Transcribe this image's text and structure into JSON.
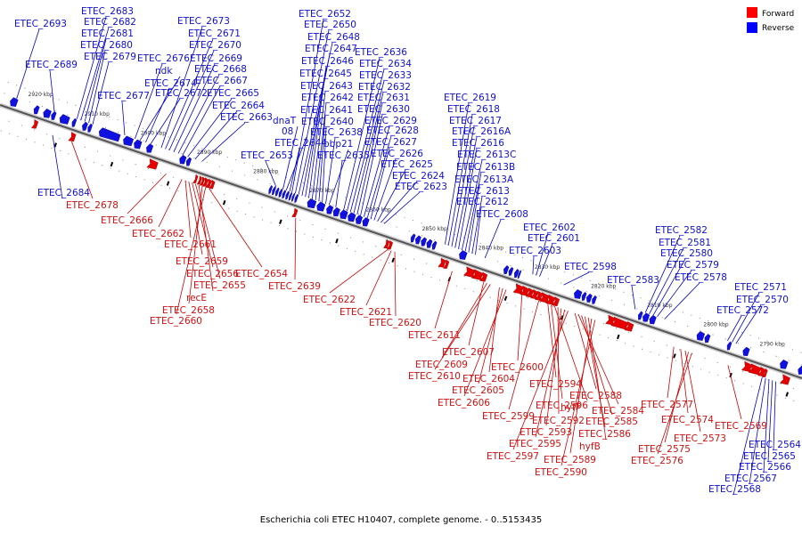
{
  "caption": "Escherichia coli ETEC H10407, complete genome. - 0..5153435",
  "legend": [
    {
      "label": "Forward",
      "color": "#ff0000"
    },
    {
      "label": "Reverse",
      "color": "#0000ff"
    }
  ],
  "colors": {
    "forward": "#e80000",
    "reverse": "#1010e0",
    "axis": "#555555",
    "leader_f": "#cc0000",
    "leader_r": "#0000cc"
  },
  "ticks": [
    "2920 kbp",
    "2910 kbp",
    "2900 kbp",
    "2890 kbp",
    "2880 kbp",
    "2870 kbp",
    "2860 kbp",
    "2850 kbp",
    "2840 kbp",
    "2830 kbp",
    "2820 kbp",
    "2810 kbp",
    "2800 kbp",
    "2790 kbp"
  ],
  "reverse_labels": [
    {
      "text": "ETEC_2693",
      "kbp": 2923.7
    },
    {
      "text": "ETEC_2683",
      "kbp": 2913.0
    },
    {
      "text": "ETEC_2682",
      "kbp": 2912.3
    },
    {
      "text": "ETEC_2681",
      "kbp": 2911.6
    },
    {
      "text": "ETEC_2680",
      "kbp": 2910.9
    },
    {
      "text": "ETEC_2679",
      "kbp": 2910.2
    },
    {
      "text": "ETEC_2689",
      "kbp": 2917.0
    },
    {
      "text": "ETEC_2677",
      "kbp": 2904.5
    },
    {
      "text": "ETEC_2676",
      "kbp": 2902.7
    },
    {
      "text": "ndk",
      "kbp": 2901.8
    },
    {
      "text": "ETEC_2674",
      "kbp": 2900.8
    },
    {
      "text": "ETEC_2672",
      "kbp": 2899.9
    },
    {
      "text": "ETEC_2673",
      "kbp": 2898.0
    },
    {
      "text": "ETEC_2671",
      "kbp": 2897.3
    },
    {
      "text": "ETEC_2670",
      "kbp": 2896.6
    },
    {
      "text": "ETEC_2669",
      "kbp": 2895.8
    },
    {
      "text": "ETEC_2668",
      "kbp": 2895.0
    },
    {
      "text": "ETEC_2667",
      "kbp": 2894.2
    },
    {
      "text": "ETEC_2665",
      "kbp": 2893.3
    },
    {
      "text": "ETEC_2664",
      "kbp": 2892.0
    },
    {
      "text": "ETEC_2663",
      "kbp": 2890.8
    },
    {
      "text": "ETEC_2653",
      "kbp": 2877.6
    },
    {
      "text": "dnaT",
      "kbp": 2876.4
    },
    {
      "text": "08",
      "kbp": 2875.8
    },
    {
      "text": "ETEC_2644",
      "kbp": 2875.2
    },
    {
      "text": "ETEC_2652",
      "kbp": 2874.8
    },
    {
      "text": "ETEC_2650",
      "kbp": 2874.2
    },
    {
      "text": "ETEC_2648",
      "kbp": 2873.6
    },
    {
      "text": "ETEC_2647",
      "kbp": 2873.0
    },
    {
      "text": "ETEC_2646",
      "kbp": 2872.4
    },
    {
      "text": "ETEC_2645",
      "kbp": 2871.8
    },
    {
      "text": "ETEC_2643",
      "kbp": 2871.2
    },
    {
      "text": "ETEC_2642",
      "kbp": 2870.6
    },
    {
      "text": "ETEC_2641",
      "kbp": 2870.0
    },
    {
      "text": "ETEC_2640",
      "kbp": 2869.4
    },
    {
      "text": "ETEC_2638",
      "kbp": 2868.8
    },
    {
      "text": "bbp21",
      "kbp": 2868.2
    },
    {
      "text": "ETEC_2635",
      "kbp": 2867.0
    },
    {
      "text": "ETEC_2636",
      "kbp": 2865.6
    },
    {
      "text": "ETEC_2634",
      "kbp": 2865.0
    },
    {
      "text": "ETEC_2633",
      "kbp": 2864.4
    },
    {
      "text": "ETEC_2632",
      "kbp": 2863.8
    },
    {
      "text": "ETEC_2631",
      "kbp": 2863.2
    },
    {
      "text": "ETEC_2630",
      "kbp": 2862.6
    },
    {
      "text": "ETEC_2629",
      "kbp": 2862.0
    },
    {
      "text": "ETEC_2628",
      "kbp": 2861.4
    },
    {
      "text": "ETEC_2627",
      "kbp": 2860.8
    },
    {
      "text": "ETEC_2626",
      "kbp": 2860.2
    },
    {
      "text": "ETEC_2625",
      "kbp": 2859.6
    },
    {
      "text": "ETEC_2624",
      "kbp": 2859.0
    },
    {
      "text": "ETEC_2623",
      "kbp": 2858.4
    },
    {
      "text": "ETEC_2619",
      "kbp": 2847.6
    },
    {
      "text": "ETEC_2618",
      "kbp": 2847.0
    },
    {
      "text": "ETEC_2617",
      "kbp": 2846.4
    },
    {
      "text": "ETEC_2616A",
      "kbp": 2845.8
    },
    {
      "text": "ETEC_2616",
      "kbp": 2845.2
    },
    {
      "text": "ETEC_2613C",
      "kbp": 2844.6
    },
    {
      "text": "ETEC_2613B",
      "kbp": 2844.0
    },
    {
      "text": "ETEC_2613A",
      "kbp": 2843.4
    },
    {
      "text": "ETEC_2613",
      "kbp": 2842.8
    },
    {
      "text": "ETEC_2612",
      "kbp": 2842.2
    },
    {
      "text": "ETEC_2608",
      "kbp": 2840.5
    },
    {
      "text": "ETEC_2602",
      "kbp": 2831.4
    },
    {
      "text": "ETEC_2601",
      "kbp": 2830.8
    },
    {
      "text": "ETEC_2603",
      "kbp": 2832.0
    },
    {
      "text": "ETEC_2598",
      "kbp": 2826.5
    },
    {
      "text": "ETEC_2583",
      "kbp": 2813.8
    },
    {
      "text": "ETEC_2582",
      "kbp": 2812.0
    },
    {
      "text": "ETEC_2581",
      "kbp": 2811.3
    },
    {
      "text": "ETEC_2580",
      "kbp": 2810.6
    },
    {
      "text": "ETEC_2579",
      "kbp": 2809.9
    },
    {
      "text": "ETEC_2578",
      "kbp": 2808.6
    },
    {
      "text": "ETEC_2572",
      "kbp": 2797.4
    },
    {
      "text": "ETEC_2571",
      "kbp": 2796.6
    },
    {
      "text": "ETEC_2570",
      "kbp": 2795.9
    }
  ],
  "reverse_below_labels": [
    {
      "text": "ETEC_2684",
      "kbp": 2916.0
    },
    {
      "text": "ETEC_2564",
      "kbp": 2787.5
    },
    {
      "text": "ETEC_2565",
      "kbp": 2788.1
    },
    {
      "text": "ETEC_2566",
      "kbp": 2788.7
    },
    {
      "text": "ETEC_2567",
      "kbp": 2789.3
    },
    {
      "text": "ETEC_2568",
      "kbp": 2789.9
    }
  ],
  "forward_labels": [
    {
      "text": "ETEC_2678",
      "kbp": 2912.6
    },
    {
      "text": "ETEC_2666",
      "kbp": 2895.8
    },
    {
      "text": "ETEC_2662",
      "kbp": 2893.0
    },
    {
      "text": "ETEC_2661",
      "kbp": 2892.4
    },
    {
      "text": "ETEC_2659",
      "kbp": 2891.8
    },
    {
      "text": "ETEC_2656",
      "kbp": 2891.2
    },
    {
      "text": "ETEC_2655",
      "kbp": 2890.6
    },
    {
      "text": "recE",
      "kbp": 2890.0
    },
    {
      "text": "ETEC_2658",
      "kbp": 2889.4
    },
    {
      "text": "ETEC_2660",
      "kbp": 2888.8
    },
    {
      "text": "ETEC_2654",
      "kbp": 2888.2
    },
    {
      "text": "ETEC_2639",
      "kbp": 2872.8
    },
    {
      "text": "ETEC_2622",
      "kbp": 2856.4
    },
    {
      "text": "ETEC_2621",
      "kbp": 2855.8
    },
    {
      "text": "ETEC_2620",
      "kbp": 2855.2
    },
    {
      "text": "ETEC_2611",
      "kbp": 2845.0
    },
    {
      "text": "ETEC_2607",
      "kbp": 2839.4
    },
    {
      "text": "ETEC_2609",
      "kbp": 2838.8
    },
    {
      "text": "ETEC_2610",
      "kbp": 2838.2
    },
    {
      "text": "ETEC_2604",
      "kbp": 2836.6
    },
    {
      "text": "ETEC_2605",
      "kbp": 2836.0
    },
    {
      "text": "ETEC_2606",
      "kbp": 2835.4
    },
    {
      "text": "ETEC_2600",
      "kbp": 2832.6
    },
    {
      "text": "ETEC_2599",
      "kbp": 2829.6
    },
    {
      "text": "ETEC_2594",
      "kbp": 2828.0
    },
    {
      "text": "ETEC_2596",
      "kbp": 2827.4
    },
    {
      "text": "hyfF",
      "kbp": 2826.8
    },
    {
      "text": "ETEC_2592",
      "kbp": 2826.2
    },
    {
      "text": "ETEC_2593",
      "kbp": 2825.6
    },
    {
      "text": "ETEC_2595",
      "kbp": 2825.0
    },
    {
      "text": "ETEC_2597",
      "kbp": 2824.4
    },
    {
      "text": "ETEC_2588",
      "kbp": 2823.2
    },
    {
      "text": "ETEC_2584",
      "kbp": 2822.6
    },
    {
      "text": "ETEC_2585",
      "kbp": 2822.0
    },
    {
      "text": "ETEC_2586",
      "kbp": 2821.4
    },
    {
      "text": "hyfB",
      "kbp": 2820.8
    },
    {
      "text": "ETEC_2589",
      "kbp": 2820.2
    },
    {
      "text": "ETEC_2590",
      "kbp": 2819.6
    },
    {
      "text": "ETEC_2577",
      "kbp": 2805.6
    },
    {
      "text": "ETEC_2574",
      "kbp": 2804.4
    },
    {
      "text": "ETEC_2573",
      "kbp": 2803.6
    },
    {
      "text": "ETEC_2575",
      "kbp": 2803.0
    },
    {
      "text": "ETEC_2576",
      "kbp": 2802.4
    },
    {
      "text": "ETEC_2569",
      "kbp": 2796.0
    }
  ],
  "genes": [
    {
      "s": 2923.4,
      "e": 2924.6,
      "d": "r"
    },
    {
      "s": 2919.6,
      "e": 2920.4,
      "d": "r"
    },
    {
      "s": 2919.0,
      "e": 2919.5,
      "d": "f"
    },
    {
      "s": 2917.5,
      "e": 2918.7,
      "d": "r"
    },
    {
      "s": 2916.6,
      "e": 2917.3,
      "d": "r"
    },
    {
      "s": 2914.2,
      "e": 2915.8,
      "d": "r"
    },
    {
      "s": 2913.0,
      "e": 2913.6,
      "d": "r"
    },
    {
      "s": 2912.3,
      "e": 2912.9,
      "d": "f"
    },
    {
      "s": 2911.0,
      "e": 2911.8,
      "d": "r"
    },
    {
      "s": 2910.2,
      "e": 2910.8,
      "d": "r"
    },
    {
      "s": 2905.2,
      "e": 2908.8,
      "d": "r"
    },
    {
      "s": 2902.9,
      "e": 2904.5,
      "d": "r"
    },
    {
      "s": 2901.4,
      "e": 2902.6,
      "d": "r"
    },
    {
      "s": 2899.4,
      "e": 2900.4,
      "d": "r"
    },
    {
      "s": 2897.7,
      "e": 2898.9,
      "d": "f"
    },
    {
      "s": 2893.5,
      "e": 2894.5,
      "d": "r"
    },
    {
      "s": 2892.6,
      "e": 2893.3,
      "d": "r"
    },
    {
      "s": 2890.6,
      "e": 2890.9,
      "d": "f"
    },
    {
      "s": 2889.9,
      "e": 2890.2,
      "d": "f"
    },
    {
      "s": 2889.4,
      "e": 2889.7,
      "d": "f"
    },
    {
      "s": 2888.8,
      "e": 2889.2,
      "d": "f"
    },
    {
      "s": 2888.2,
      "e": 2888.6,
      "d": "f"
    },
    {
      "s": 2887.6,
      "e": 2888.0,
      "d": "f"
    },
    {
      "s": 2878.2,
      "e": 2878.6,
      "d": "r"
    },
    {
      "s": 2877.6,
      "e": 2878.0,
      "d": "r"
    },
    {
      "s": 2877.0,
      "e": 2877.4,
      "d": "r"
    },
    {
      "s": 2876.4,
      "e": 2876.8,
      "d": "r"
    },
    {
      "s": 2875.8,
      "e": 2876.2,
      "d": "r"
    },
    {
      "s": 2875.2,
      "e": 2875.6,
      "d": "r"
    },
    {
      "s": 2874.7,
      "e": 2875.0,
      "d": "r"
    },
    {
      "s": 2874.2,
      "e": 2874.5,
      "d": "r"
    },
    {
      "s": 2873.6,
      "e": 2874.0,
      "d": "r"
    },
    {
      "s": 2872.9,
      "e": 2873.3,
      "d": "f"
    },
    {
      "s": 2870.4,
      "e": 2871.8,
      "d": "r"
    },
    {
      "s": 2868.8,
      "e": 2870.1,
      "d": "r"
    },
    {
      "s": 2867.4,
      "e": 2868.4,
      "d": "r"
    },
    {
      "s": 2866.2,
      "e": 2867.2,
      "d": "r"
    },
    {
      "s": 2864.8,
      "e": 2866.0,
      "d": "r"
    },
    {
      "s": 2863.4,
      "e": 2864.6,
      "d": "r"
    },
    {
      "s": 2862.2,
      "e": 2863.2,
      "d": "r"
    },
    {
      "s": 2861.0,
      "e": 2862.0,
      "d": "r"
    },
    {
      "s": 2856.6,
      "e": 2857.0,
      "d": "f"
    },
    {
      "s": 2856.0,
      "e": 2856.4,
      "d": "f"
    },
    {
      "s": 2852.8,
      "e": 2853.4,
      "d": "r"
    },
    {
      "s": 2851.8,
      "e": 2852.6,
      "d": "r"
    },
    {
      "s": 2850.8,
      "e": 2851.6,
      "d": "r"
    },
    {
      "s": 2849.8,
      "e": 2850.6,
      "d": "r"
    },
    {
      "s": 2849.0,
      "e": 2849.6,
      "d": "r"
    },
    {
      "s": 2846.6,
      "e": 2847.2,
      "d": "f"
    },
    {
      "s": 2846.0,
      "e": 2846.4,
      "d": "f"
    },
    {
      "s": 2843.6,
      "e": 2844.8,
      "d": "r"
    },
    {
      "s": 2841.4,
      "e": 2842.6,
      "d": "f"
    },
    {
      "s": 2840.0,
      "e": 2841.2,
      "d": "f"
    },
    {
      "s": 2839.2,
      "e": 2839.8,
      "d": "f"
    },
    {
      "s": 2836.2,
      "e": 2836.9,
      "d": "r"
    },
    {
      "s": 2835.4,
      "e": 2836.0,
      "d": "r"
    },
    {
      "s": 2834.4,
      "e": 2835.0,
      "d": "r"
    },
    {
      "s": 2834.0,
      "e": 2834.3,
      "d": "r"
    },
    {
      "s": 2832.8,
      "e": 2833.8,
      "d": "f"
    },
    {
      "s": 2831.8,
      "e": 2832.6,
      "d": "f"
    },
    {
      "s": 2831.0,
      "e": 2831.6,
      "d": "f"
    },
    {
      "s": 2830.2,
      "e": 2830.8,
      "d": "f"
    },
    {
      "s": 2829.4,
      "e": 2830.0,
      "d": "f"
    },
    {
      "s": 2828.2,
      "e": 2829.2,
      "d": "f"
    },
    {
      "s": 2827.2,
      "e": 2828.0,
      "d": "f"
    },
    {
      "s": 2826.4,
      "e": 2827.0,
      "d": "f"
    },
    {
      "s": 2823.2,
      "e": 2824.4,
      "d": "r"
    },
    {
      "s": 2822.4,
      "e": 2823.0,
      "d": "r"
    },
    {
      "s": 2821.4,
      "e": 2822.2,
      "d": "r"
    },
    {
      "s": 2820.6,
      "e": 2821.2,
      "d": "r"
    },
    {
      "s": 2816.6,
      "e": 2817.4,
      "d": "f"
    },
    {
      "s": 2814.2,
      "e": 2816.4,
      "d": "f"
    },
    {
      "s": 2813.2,
      "e": 2814.0,
      "d": "f"
    },
    {
      "s": 2812.4,
      "e": 2813.0,
      "d": "r"
    },
    {
      "s": 2811.2,
      "e": 2812.2,
      "d": "r"
    },
    {
      "s": 2810.0,
      "e": 2811.0,
      "d": "r"
    },
    {
      "s": 2801.4,
      "e": 2802.6,
      "d": "r"
    },
    {
      "s": 2800.4,
      "e": 2801.2,
      "d": "r"
    },
    {
      "s": 2796.6,
      "e": 2797.2,
      "d": "r"
    },
    {
      "s": 2793.4,
      "e": 2794.4,
      "d": "r"
    },
    {
      "s": 2792.2,
      "e": 2793.2,
      "d": "f"
    },
    {
      "s": 2790.6,
      "e": 2792.0,
      "d": "f"
    },
    {
      "s": 2789.8,
      "e": 2790.4,
      "d": "f"
    },
    {
      "s": 2789.4,
      "e": 2789.7,
      "d": "f"
    },
    {
      "s": 2786.6,
      "e": 2787.8,
      "d": "r"
    },
    {
      "s": 2785.4,
      "e": 2786.4,
      "d": "f"
    },
    {
      "s": 2783.8,
      "e": 2784.6,
      "d": "r"
    }
  ]
}
